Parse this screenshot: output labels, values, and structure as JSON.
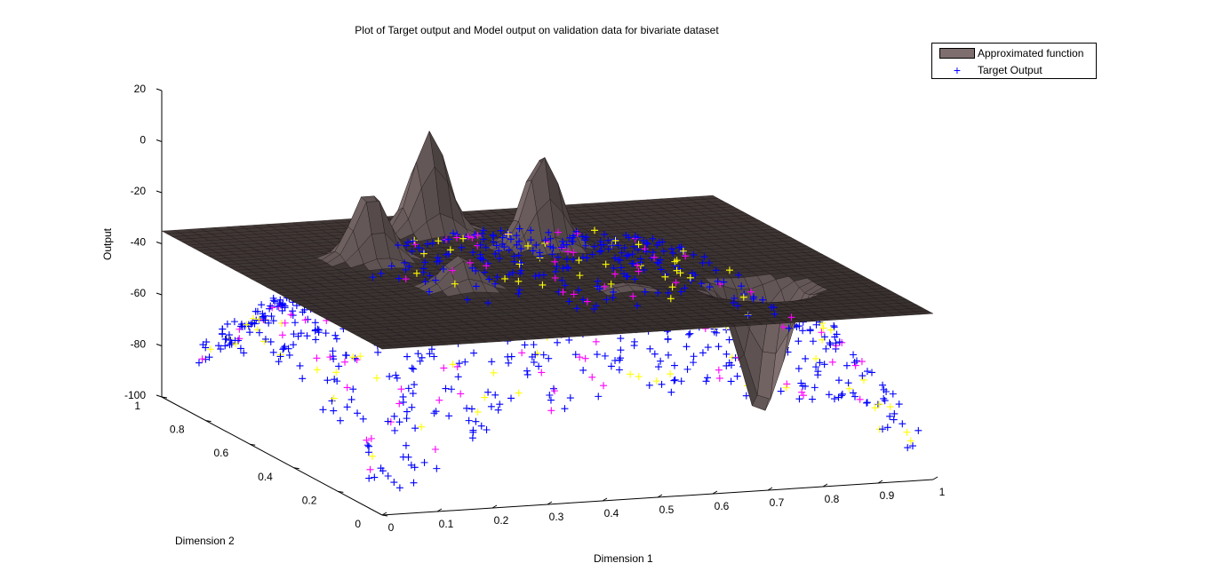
{
  "chart_data": {
    "type": "scatter",
    "subtype": "3d-surface-with-scatter",
    "title": "Plot of Target output and Model output on validation data for bivariate dataset",
    "xlabel": "Dimension 1",
    "ylabel": "Dimension 2",
    "zlabel": "Output",
    "xlim": [
      0,
      1
    ],
    "ylim": [
      0,
      1
    ],
    "zlim": [
      -100,
      20
    ],
    "x_ticks": [
      "0",
      "0.1",
      "0.2",
      "0.3",
      "0.4",
      "0.5",
      "0.6",
      "0.7",
      "0.8",
      "0.9",
      "1"
    ],
    "y_ticks": [
      "0",
      "0.2",
      "0.4",
      "0.6",
      "0.8",
      "1"
    ],
    "z_ticks": [
      "20",
      "0",
      "-20",
      "-40",
      "-60",
      "-80",
      "-100"
    ],
    "legend_position": "top-right",
    "series": [
      {
        "name": "Approximated function",
        "kind": "surface",
        "color": "#7f6e6e",
        "base_level": -35,
        "features": [
          {
            "x": 0.25,
            "y": 0.68,
            "z_peak": -7,
            "shape": "peak"
          },
          {
            "x": 0.31,
            "y": 0.42,
            "z_peak": -22,
            "shape": "peak"
          },
          {
            "x": 0.43,
            "y": 0.86,
            "z_peak": 5,
            "shape": "peak"
          },
          {
            "x": 0.57,
            "y": 0.7,
            "z_peak": 2,
            "shape": "peak"
          },
          {
            "x": 0.57,
            "y": 0.32,
            "z_peak": -32,
            "shape": "peak"
          },
          {
            "x": 0.8,
            "y": 0.28,
            "z_peak": -86,
            "shape": "dip"
          }
        ]
      },
      {
        "name": "Target Output",
        "kind": "scatter",
        "marker": "+",
        "color": "#0000ff",
        "secondary_marker_colors": [
          "#ffff00",
          "#ff00ff"
        ]
      }
    ]
  },
  "legend": {
    "items": [
      {
        "label": "Approximated function",
        "color": "#7f6e6e"
      },
      {
        "label": "Target Output",
        "marker": "+",
        "color": "#0000ff"
      }
    ]
  }
}
